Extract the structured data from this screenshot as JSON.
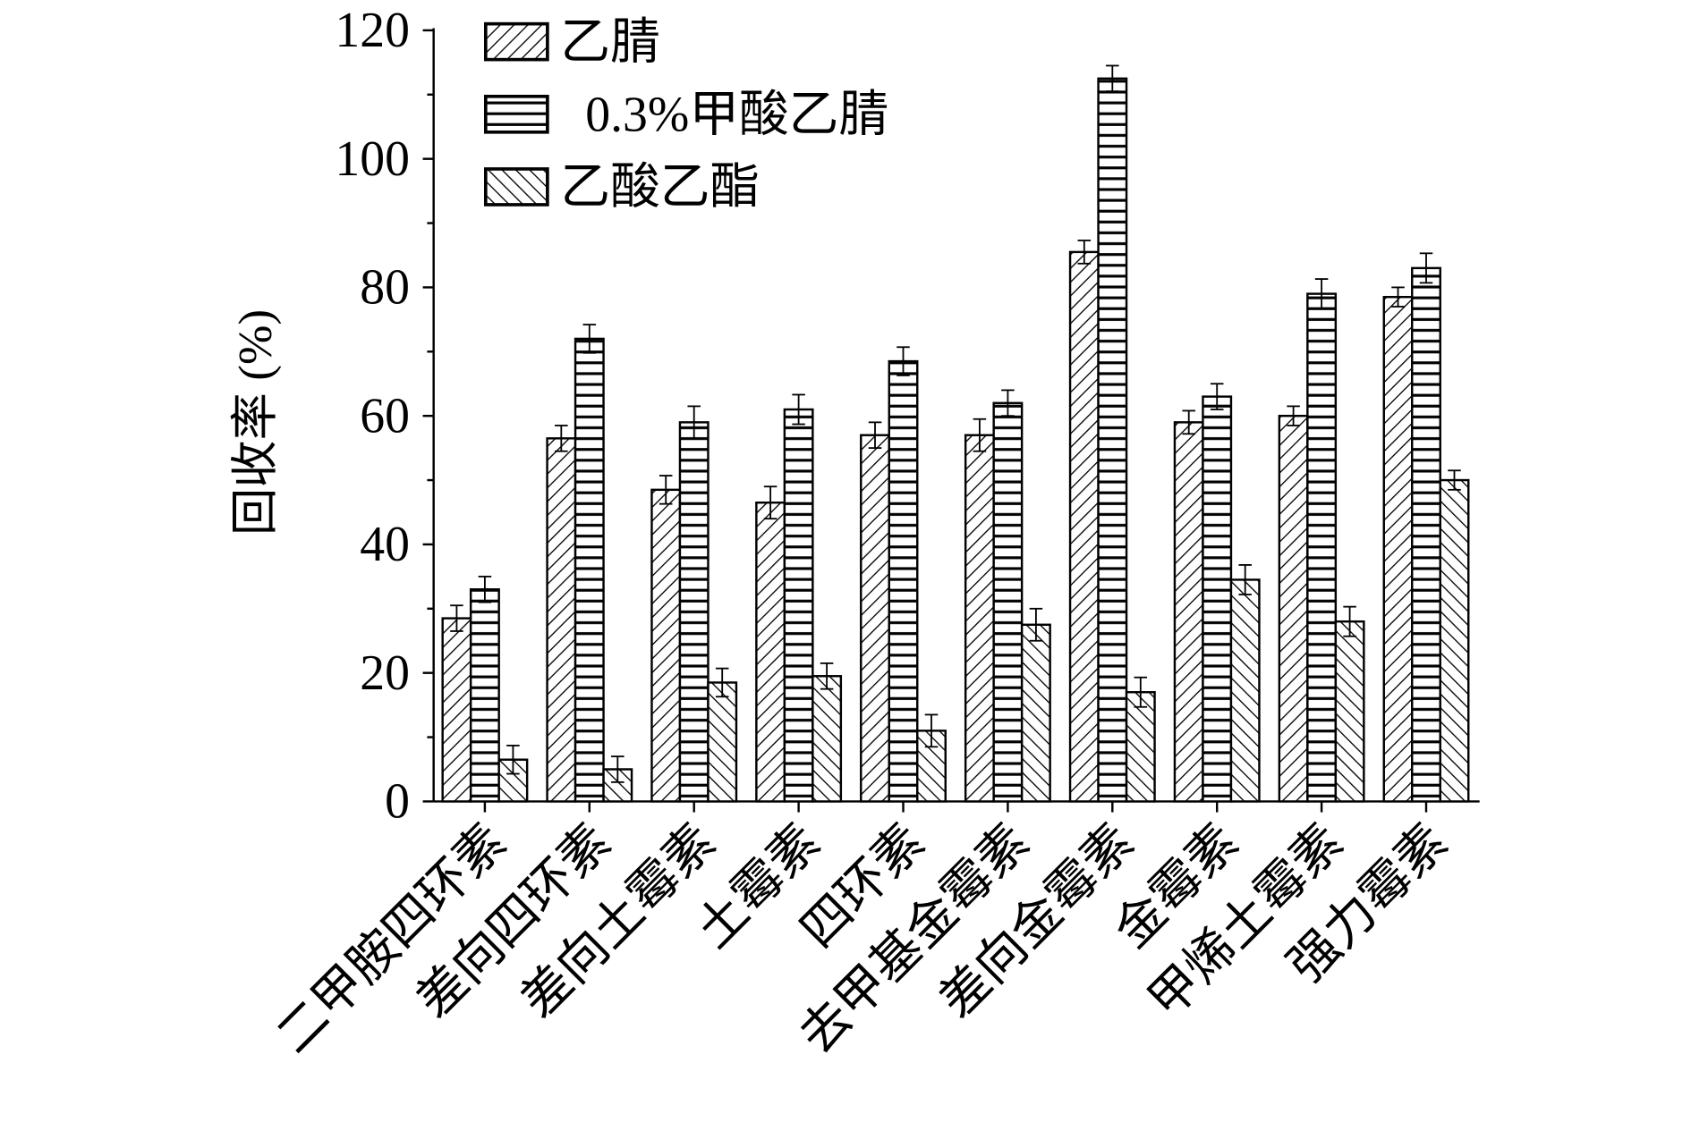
{
  "chart_data": {
    "type": "bar",
    "title": "",
    "xlabel": "",
    "ylabel": "回收率 (%)",
    "ylim": [
      0,
      120
    ],
    "yticks": [
      "0",
      "20",
      "40",
      "60",
      "80",
      "100",
      "120"
    ],
    "legend_position": "top-left",
    "categories": [
      "二甲胺四环素",
      "差向四环素",
      "差向土霉素",
      "土霉素",
      "四环素",
      "去甲基金霉素",
      "差向金霉素",
      "金霉素",
      "甲烯土霉素",
      "强力霉素"
    ],
    "series": [
      {
        "name": "乙腈",
        "pattern": "forward-hatch",
        "values": [
          28.5,
          56.5,
          48.5,
          46.5,
          57,
          57,
          85.5,
          59,
          60,
          78.5
        ],
        "errors": [
          2,
          2,
          2.2,
          2.5,
          2,
          2.5,
          1.8,
          1.8,
          1.5,
          1.5
        ]
      },
      {
        "name": "0.3%甲酸乙腈",
        "pattern": "horizontal",
        "values": [
          33,
          72,
          59,
          61,
          68.5,
          62,
          112.5,
          63,
          79,
          83
        ],
        "errors": [
          2,
          2.2,
          2.5,
          2.3,
          2.2,
          2,
          2,
          2,
          2.3,
          2.3
        ]
      },
      {
        "name": "乙酸乙酯",
        "pattern": "back-hatch",
        "values": [
          6.5,
          5,
          18.5,
          19.5,
          11,
          27.5,
          17,
          34.5,
          28,
          50
        ],
        "errors": [
          2.2,
          2,
          2.2,
          2,
          2.5,
          2.5,
          2.3,
          2.3,
          2.3,
          1.5
        ]
      }
    ]
  }
}
